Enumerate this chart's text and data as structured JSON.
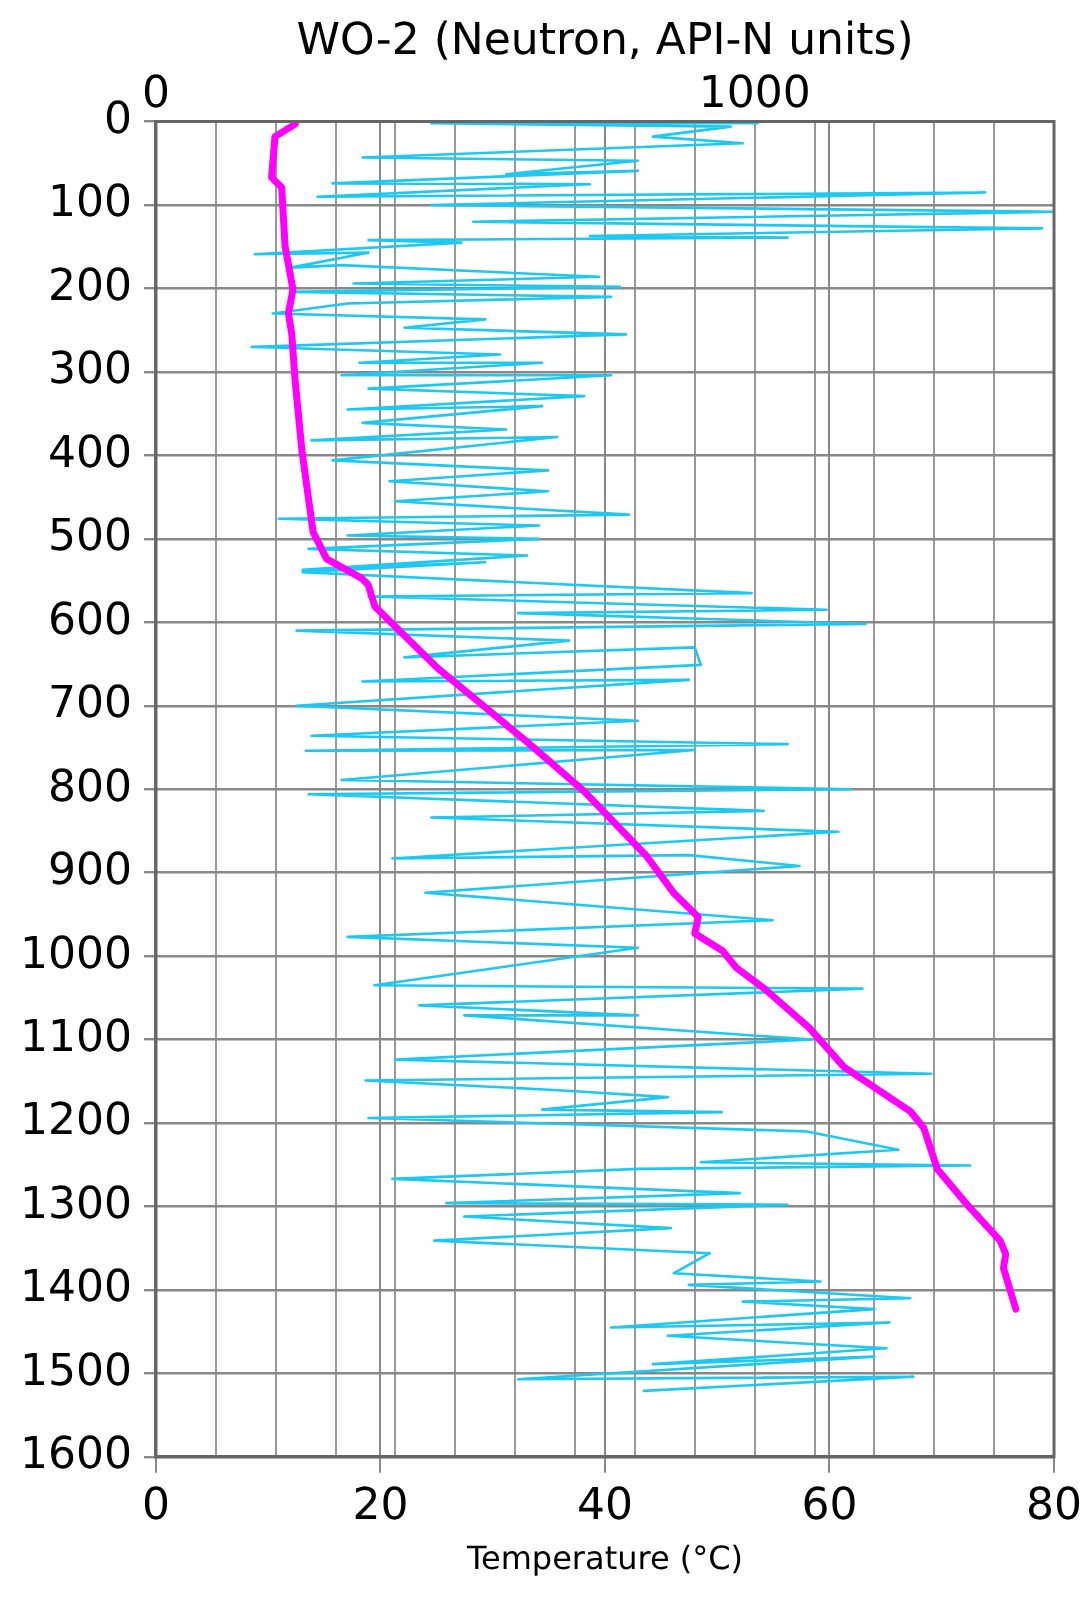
{
  "chart_data": {
    "type": "line",
    "x2label": "WO-2 (Neutron, API-N units)",
    "xlabel": "Temperature (°C)",
    "xlim": [
      0,
      80
    ],
    "xticks": [
      0,
      20,
      40,
      60,
      80
    ],
    "x2lim": [
      0,
      1500
    ],
    "x2ticks": [
      0,
      {
        "value": 100,
        "label": null
      },
      {
        "value": 200,
        "label": null
      },
      {
        "value": 300,
        "label": null
      },
      {
        "value": 400,
        "label": null
      },
      {
        "value": 500,
        "label": null
      },
      {
        "value": 600,
        "label": null
      },
      {
        "value": 700,
        "label": null
      },
      {
        "value": 800,
        "label": null
      },
      {
        "value": 900,
        "label": null
      },
      1000,
      {
        "value": 1100,
        "label": null
      },
      {
        "value": 1200,
        "label": null
      },
      {
        "value": 1300,
        "label": null
      },
      {
        "value": 1400,
        "label": null
      },
      {
        "value": 1500,
        "label": null
      }
    ],
    "ylim": [
      1600,
      0
    ],
    "yticks": [
      0,
      100,
      200,
      300,
      400,
      500,
      600,
      700,
      800,
      900,
      1000,
      1100,
      1200,
      1300,
      1400,
      1500,
      1600
    ],
    "grid": true,
    "marker": "none",
    "line_style": "solid",
    "series": [
      {
        "color": "#1ec8f0",
        "axis": "x2",
        "x": [
          1005,
          460,
          960,
          830,
          980,
          345,
          805,
          585,
          805,
          295,
          725,
          270,
          1385,
          460,
          1500,
          530,
          1480,
          725,
          1055,
          355,
          510,
          165,
          355,
          225,
          310,
          740,
          330,
          775,
          225,
          760,
          320,
          195,
          550,
          415,
          785,
          160,
          575,
          340,
          645,
          310,
          760,
          355,
          715,
          320,
          645,
          345,
          585,
          260,
          670,
          295,
          655,
          390,
          655,
          400,
          790,
          205,
          640,
          320,
          640,
          255,
          620,
          245,
          550,
          245,
          995,
          355,
          1120,
          605,
          1185,
          235,
          690,
          415,
          900,
          910,
          345,
          890,
          235,
          805,
          260,
          1055,
          250,
          900,
          310,
          1160,
          255,
          1015,
          460,
          1140,
          395,
          890,
          1075,
          450,
          1030,
          320,
          805,
          365,
          1180,
          440,
          805,
          515,
          1095,
          400,
          1295,
          350,
          680,
          855,
          645,
          945,
          355,
          1085,
          1240,
          910,
          1360,
          805,
          395,
          975,
          485,
          1055,
          515,
          860,
          465,
          925,
          865,
          1110,
          890,
          1260,
          980,
          1200,
          760,
          1225,
          855,
          1220,
          830,
          1200,
          605,
          1265,
          815
        ],
        "values": [
          2,
          2,
          6,
          18,
          26,
          43,
          47,
          63,
          59,
          74,
          75,
          90,
          85,
          100,
          108,
          120,
          128,
          137,
          139,
          142,
          145,
          159,
          157,
          175,
          172,
          186,
          194,
          198,
          204,
          210,
          218,
          230,
          237,
          247,
          255,
          270,
          279,
          289,
          289,
          304,
          304,
          320,
          329,
          345,
          341,
          361,
          369,
          382,
          378,
          406,
          418,
          431,
          443,
          455,
          471,
          476,
          484,
          496,
          500,
          512,
          520,
          537,
          528,
          540,
          565,
          569,
          585,
          589,
          602,
          610,
          622,
          642,
          630,
          651,
          671,
          669,
          700,
          718,
          736,
          746,
          754,
          753,
          789,
          800,
          806,
          826,
          834,
          851,
          883,
          879,
          892,
          924,
          957,
          977,
          990,
          1035,
          1039,
          1059,
          1071,
          1071,
          1100,
          1124,
          1141,
          1149,
          1161,
          1169,
          1184,
          1187,
          1194,
          1210,
          1232,
          1247,
          1251,
          1255,
          1267,
          1284,
          1296,
          1298,
          1312,
          1326,
          1341,
          1356,
          1380,
          1390,
          1394,
          1410,
          1414,
          1423,
          1445,
          1439,
          1455,
          1470,
          1489,
          1480,
          1507,
          1504,
          1521
        ]
      },
      {
        "color": "#ff00ff",
        "x": [
          12.4,
          10.6,
          10.3,
          11.2,
          11.5,
          12.2,
          11.8,
          12.1,
          12.4,
          13.0,
          14.0,
          15.2,
          18.3,
          18.9,
          19.5,
          25.1,
          28.8,
          33.2,
          38.1,
          43.7,
          46.1,
          48.3,
          48.0,
          50.5,
          51.7,
          54.2,
          58.2,
          61.3,
          67.2,
          68.4,
          69.6,
          72.4,
          75.2,
          75.7,
          75.5,
          76.6
        ],
        "values": [
          3,
          18,
          67,
          79,
          149,
          201,
          230,
          255,
          311,
          394,
          492,
          524,
          547,
          555,
          581,
          655,
          696,
          745,
          802,
          880,
          924,
          953,
          973,
          994,
          1014,
          1039,
          1086,
          1133,
          1186,
          1206,
          1255,
          1300,
          1341,
          1357,
          1374,
          1423
        ]
      }
    ]
  }
}
